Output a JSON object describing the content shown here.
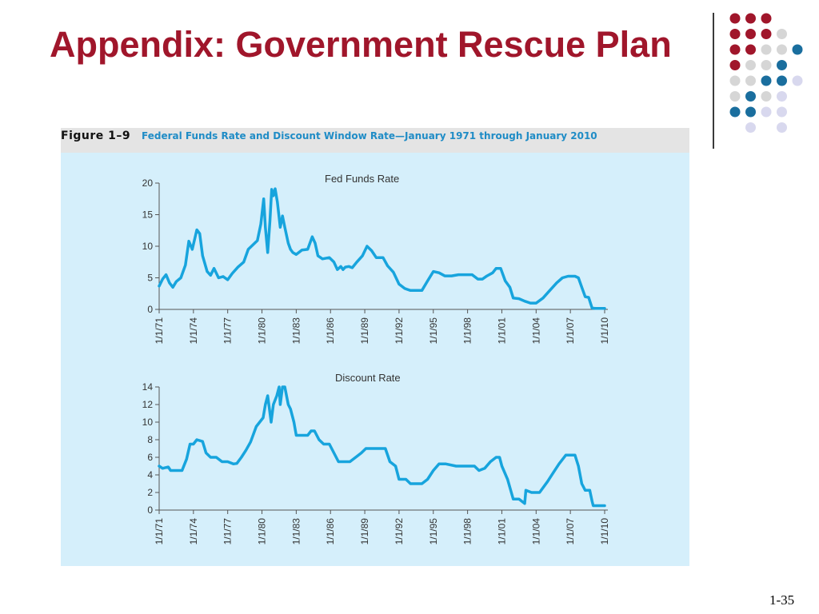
{
  "slide": {
    "title": "Appendix: Government Rescue Plan",
    "slide_number": "1-35",
    "colors": {
      "title": "#a0162b",
      "accent_blue": "#1a6e9e",
      "accent_gray": "#d6d6d6",
      "accent_lavender": "#d8d8ee",
      "line": "#17a4dd"
    },
    "decoration": {
      "dot_grid": [
        [
          "red",
          "red",
          "red",
          null,
          null
        ],
        [
          "red",
          "red",
          "red",
          "gray",
          null
        ],
        [
          "red",
          "red",
          "gray",
          "gray",
          "blue"
        ],
        [
          "red",
          "gray",
          "gray",
          "blue",
          null
        ],
        [
          "gray",
          "gray",
          "blue",
          "blue",
          "lavender"
        ],
        [
          "gray",
          "blue",
          "gray",
          "lavender",
          null
        ],
        [
          "blue",
          "blue",
          "lavender",
          "lavender",
          null
        ],
        [
          null,
          "lavender",
          null,
          "lavender",
          null
        ]
      ]
    }
  },
  "figure": {
    "label": "Figure 1–9",
    "caption": "Federal Funds Rate and Discount Window Rate—January 1971 through January 2010"
  },
  "chart_data": [
    {
      "type": "line",
      "title": "Fed Funds Rate",
      "xlabel": "",
      "ylabel": "",
      "ylim": [
        0,
        20
      ],
      "yticks": [
        0,
        5,
        10,
        15,
        20
      ],
      "xlim": [
        1971,
        2010
      ],
      "xtick_labels": [
        "1/1/71",
        "1/1/74",
        "1/1/77",
        "1/1/80",
        "1/1/83",
        "1/1/86",
        "1/1/89",
        "1/1/92",
        "1/1/95",
        "1/1/98",
        "1/1/01",
        "1/1/04",
        "1/1/07",
        "1/1/10"
      ],
      "grid": false,
      "series": [
        {
          "x": [
            1971.0,
            1971.3,
            1971.6,
            1971.9,
            1972.2,
            1972.5,
            1972.9,
            1973.3,
            1973.6,
            1973.9,
            1974.3,
            1974.55,
            1974.8,
            1975.2,
            1975.5,
            1975.8,
            1976.2,
            1976.6,
            1977.0,
            1977.4,
            1977.9,
            1978.4,
            1978.8,
            1979.2,
            1979.6,
            1979.9,
            1980.15,
            1980.3,
            1980.5,
            1980.7,
            1980.85,
            1981.0,
            1981.15,
            1981.35,
            1981.6,
            1981.8,
            1982.0,
            1982.3,
            1982.5,
            1982.7,
            1983.0,
            1983.5,
            1984.0,
            1984.4,
            1984.65,
            1984.9,
            1985.3,
            1985.9,
            1986.3,
            1986.6,
            1986.9,
            1987.1,
            1987.3,
            1987.6,
            1987.9,
            1988.3,
            1988.8,
            1989.2,
            1989.6,
            1990.0,
            1990.6,
            1991.0,
            1991.5,
            1992.0,
            1992.5,
            1993.0,
            1993.5,
            1994.0,
            1994.5,
            1995.0,
            1995.5,
            1996.0,
            1996.6,
            1997.2,
            1997.8,
            1998.4,
            1998.9,
            1999.3,
            1999.7,
            2000.2,
            2000.5,
            2000.9,
            2001.3,
            2001.7,
            2002.0,
            2002.5,
            2003.0,
            2003.5,
            2004.0,
            2004.6,
            2005.2,
            2005.8,
            2006.3,
            2006.8,
            2007.4,
            2007.7,
            2008.0,
            2008.3,
            2008.6,
            2008.9,
            2009.2,
            2009.6,
            2010.0
          ],
          "values": [
            3.7,
            4.8,
            5.5,
            4.2,
            3.5,
            4.4,
            5.0,
            7.0,
            10.8,
            9.5,
            12.6,
            12.0,
            8.5,
            6.0,
            5.4,
            6.5,
            5.0,
            5.2,
            4.7,
            5.7,
            6.7,
            7.5,
            9.5,
            10.2,
            10.9,
            13.5,
            17.5,
            13.0,
            9.0,
            14.0,
            19.0,
            18.0,
            19.1,
            17.0,
            13.0,
            14.8,
            13.0,
            10.5,
            9.5,
            9.0,
            8.7,
            9.4,
            9.5,
            11.5,
            10.5,
            8.5,
            8.0,
            8.2,
            7.5,
            6.3,
            6.8,
            6.3,
            6.7,
            6.8,
            6.6,
            7.5,
            8.5,
            10.0,
            9.3,
            8.2,
            8.2,
            6.9,
            5.9,
            4.0,
            3.3,
            3.0,
            3.0,
            3.0,
            4.5,
            6.0,
            5.8,
            5.3,
            5.3,
            5.5,
            5.5,
            5.5,
            4.8,
            4.8,
            5.3,
            5.8,
            6.5,
            6.5,
            4.5,
            3.5,
            1.8,
            1.7,
            1.3,
            1.0,
            1.0,
            1.8,
            3.0,
            4.2,
            5.0,
            5.25,
            5.25,
            5.0,
            3.5,
            2.0,
            1.9,
            0.2,
            0.15,
            0.15,
            0.15
          ]
        }
      ]
    },
    {
      "type": "line",
      "title": "Discount Rate",
      "xlabel": "",
      "ylabel": "",
      "ylim": [
        0,
        14
      ],
      "yticks": [
        0,
        2,
        4,
        6,
        8,
        10,
        12,
        14
      ],
      "xlim": [
        1971,
        2010
      ],
      "xtick_labels": [
        "1/1/71",
        "1/1/74",
        "1/1/77",
        "1/1/80",
        "1/1/83",
        "1/1/86",
        "1/1/89",
        "1/1/92",
        "1/1/95",
        "1/1/98",
        "1/1/01",
        "1/1/04",
        "1/1/07",
        "1/1/10"
      ],
      "grid": false,
      "series": [
        {
          "x": [
            1971.0,
            1971.3,
            1971.8,
            1972.0,
            1972.5,
            1973.0,
            1973.4,
            1973.7,
            1974.0,
            1974.3,
            1974.8,
            1975.1,
            1975.5,
            1976.0,
            1976.5,
            1977.0,
            1977.5,
            1977.8,
            1978.2,
            1978.6,
            1979.0,
            1979.5,
            1979.8,
            1980.1,
            1980.3,
            1980.5,
            1980.8,
            1981.0,
            1981.3,
            1981.5,
            1981.6,
            1981.8,
            1982.0,
            1982.3,
            1982.5,
            1982.8,
            1983.0,
            1983.5,
            1984.0,
            1984.3,
            1984.6,
            1985.0,
            1985.4,
            1985.9,
            1986.3,
            1986.7,
            1987.2,
            1987.7,
            1988.2,
            1988.7,
            1989.1,
            1989.6,
            1990.2,
            1990.8,
            1991.2,
            1991.7,
            1992.0,
            1992.6,
            1993.0,
            1994.0,
            1994.5,
            1995.0,
            1995.5,
            1996.1,
            1997.0,
            1998.0,
            1998.6,
            1999.0,
            1999.5,
            2000.0,
            2000.5,
            2000.8,
            2001.0,
            2001.5,
            2002.0,
            2002.5,
            2003.0,
            2003.1,
            2003.6,
            2004.3,
            2005.0,
            2005.5,
            2006.0,
            2006.6,
            2007.0,
            2007.4,
            2007.7,
            2008.0,
            2008.3,
            2008.7,
            2008.9,
            2009.0,
            2010.0
          ],
          "values": [
            5.0,
            4.75,
            4.9,
            4.5,
            4.5,
            4.5,
            5.8,
            7.5,
            7.5,
            8.0,
            7.8,
            6.5,
            6.0,
            6.0,
            5.5,
            5.5,
            5.25,
            5.3,
            6.0,
            6.8,
            7.75,
            9.5,
            10.0,
            10.5,
            12.0,
            13.0,
            10.0,
            12.0,
            13.0,
            14.0,
            12.0,
            14.0,
            14.0,
            12.0,
            11.5,
            10.0,
            8.5,
            8.5,
            8.5,
            9.0,
            9.0,
            8.0,
            7.5,
            7.5,
            6.5,
            5.5,
            5.5,
            5.5,
            6.0,
            6.5,
            7.0,
            7.0,
            7.0,
            7.0,
            5.5,
            5.0,
            3.5,
            3.5,
            3.0,
            3.0,
            3.5,
            4.5,
            5.25,
            5.25,
            5.0,
            5.0,
            5.0,
            4.5,
            4.75,
            5.5,
            6.0,
            6.0,
            5.0,
            3.5,
            1.25,
            1.25,
            0.75,
            2.25,
            2.0,
            2.0,
            3.25,
            4.25,
            5.25,
            6.25,
            6.25,
            6.25,
            5.0,
            3.0,
            2.25,
            2.25,
            1.0,
            0.5,
            0.5
          ]
        }
      ]
    }
  ]
}
